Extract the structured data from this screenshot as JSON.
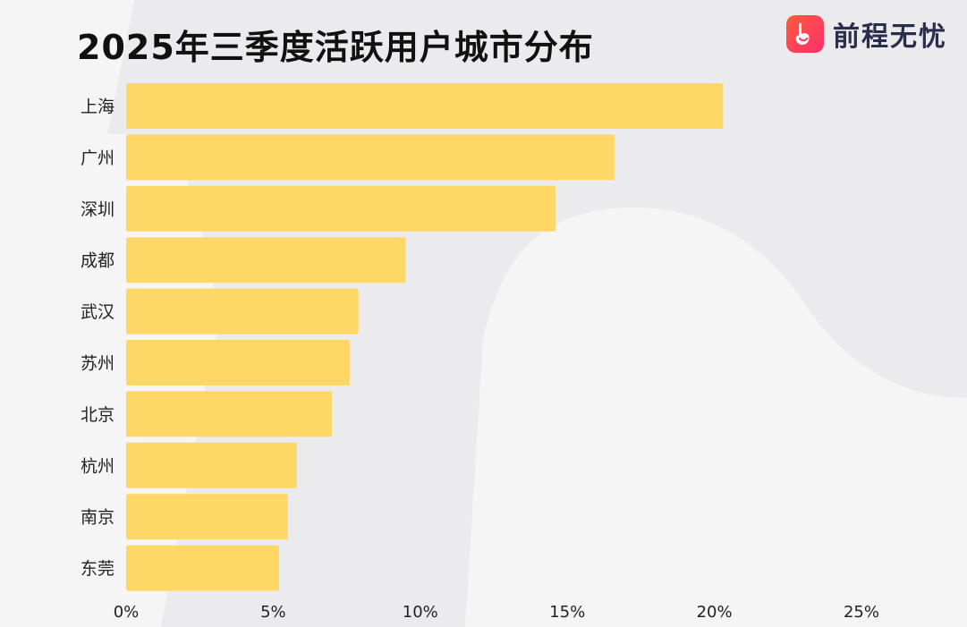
{
  "header": {
    "title": "2025年三季度活跃用户城市分布",
    "brand_name": "前程无忧"
  },
  "colors": {
    "bar": "#ffd767",
    "background": "#f5f5f6",
    "blob": "#ebebee",
    "brand_gradient_start": "#ff5a3c",
    "brand_gradient_end": "#ff2f6d"
  },
  "chart_data": {
    "type": "bar",
    "orientation": "horizontal",
    "title": "2025年三季度活跃用户城市分布",
    "categories": [
      "上海",
      "广州",
      "深圳",
      "成都",
      "武汉",
      "苏州",
      "北京",
      "杭州",
      "南京",
      "东莞"
    ],
    "values": [
      20.3,
      16.6,
      14.6,
      9.5,
      7.9,
      7.6,
      7.0,
      5.8,
      5.5,
      5.2
    ],
    "xlim": [
      0,
      25
    ],
    "x_ticks": [
      "0%",
      "5%",
      "10%",
      "15%",
      "20%",
      "25%"
    ],
    "grid": false,
    "legend": "none"
  }
}
